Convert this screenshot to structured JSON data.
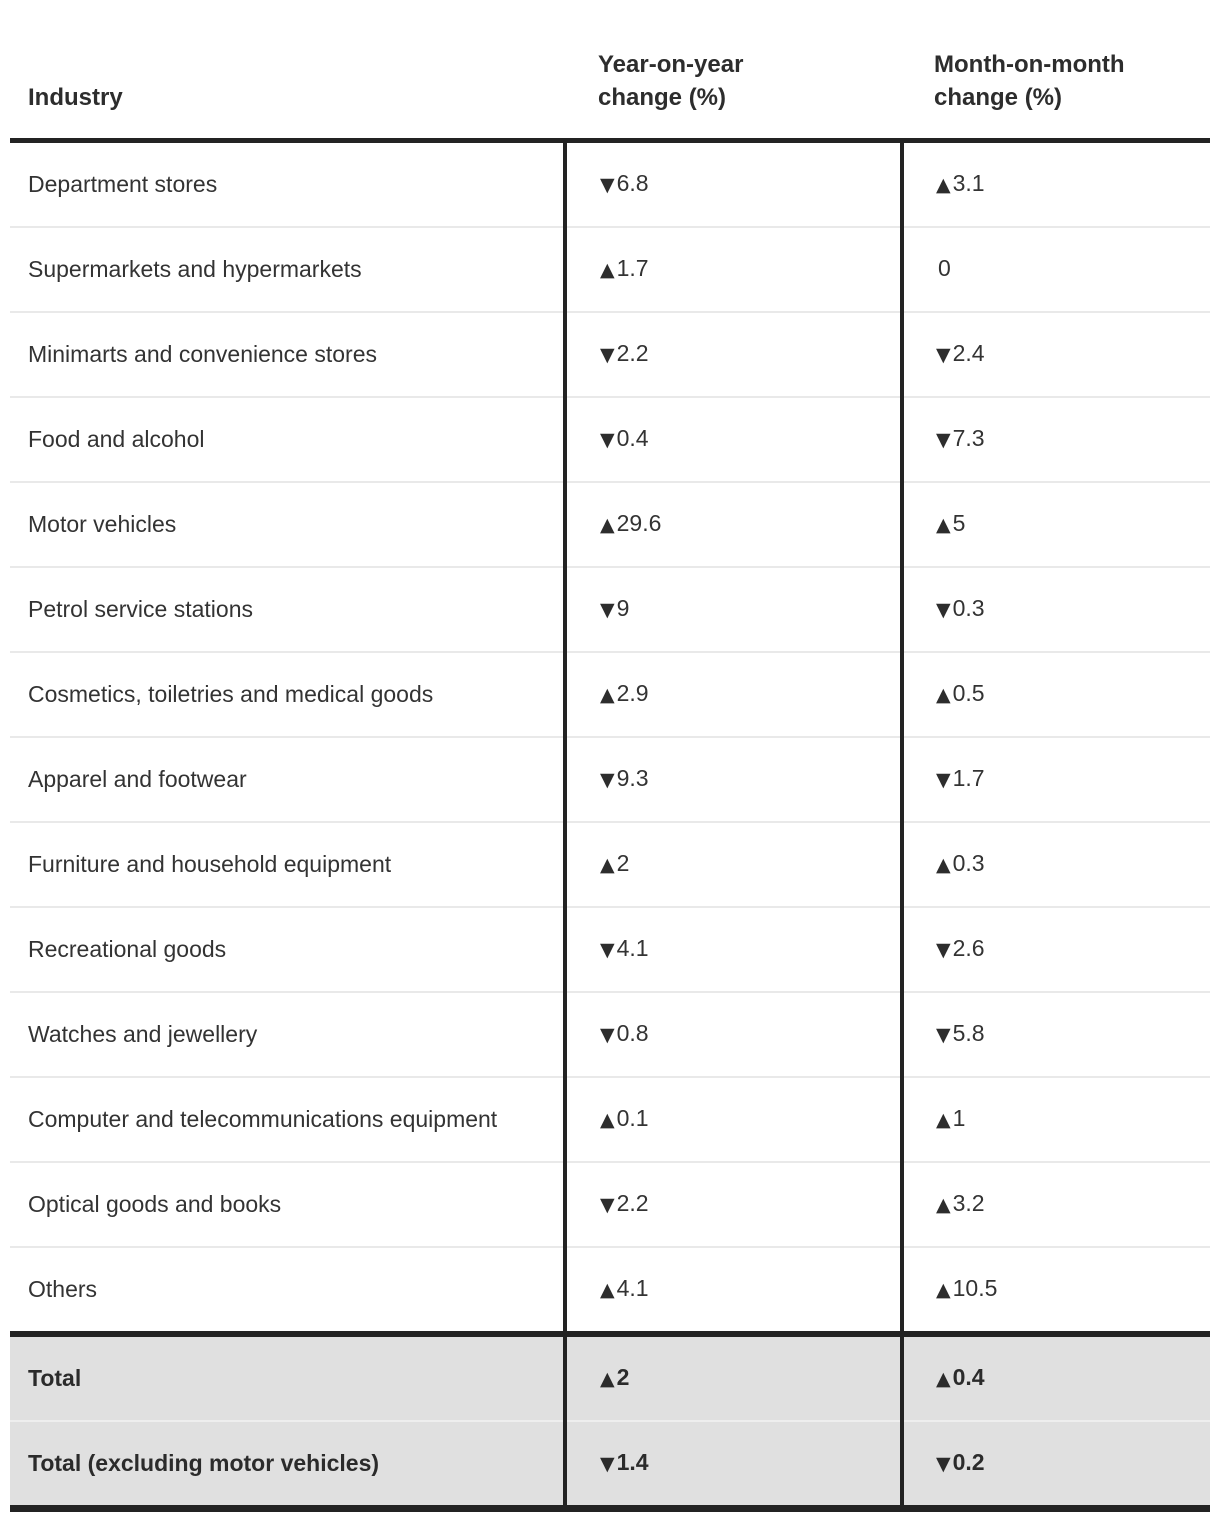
{
  "table": {
    "columns": [
      "Industry",
      "Year-on-year\nchange (%)",
      "Month-on-month\nchange (%)"
    ],
    "icons": {
      "up": "▲",
      "down": "▼",
      "none": ""
    },
    "rows": [
      {
        "label": "Department stores",
        "yoy_dir": "down",
        "yoy": "6.8",
        "mom_dir": "up",
        "mom": "3.1"
      },
      {
        "label": "Supermarkets and hypermarkets",
        "yoy_dir": "up",
        "yoy": "1.7",
        "mom_dir": "none",
        "mom": "0"
      },
      {
        "label": "Minimarts and convenience stores",
        "yoy_dir": "down",
        "yoy": "2.2",
        "mom_dir": "down",
        "mom": "2.4"
      },
      {
        "label": "Food and alcohol",
        "yoy_dir": "down",
        "yoy": "0.4",
        "mom_dir": "down",
        "mom": "7.3"
      },
      {
        "label": "Motor vehicles",
        "yoy_dir": "up",
        "yoy": "29.6",
        "mom_dir": "up",
        "mom": "5"
      },
      {
        "label": "Petrol service stations",
        "yoy_dir": "down",
        "yoy": "9",
        "mom_dir": "down",
        "mom": "0.3"
      },
      {
        "label": "Cosmetics, toiletries and medical goods",
        "yoy_dir": "up",
        "yoy": "2.9",
        "mom_dir": "up",
        "mom": "0.5"
      },
      {
        "label": "Apparel and footwear",
        "yoy_dir": "down",
        "yoy": "9.3",
        "mom_dir": "down",
        "mom": "1.7"
      },
      {
        "label": "Furniture and household equipment",
        "yoy_dir": "up",
        "yoy": "2",
        "mom_dir": "up",
        "mom": "0.3"
      },
      {
        "label": "Recreational goods",
        "yoy_dir": "down",
        "yoy": "4.1",
        "mom_dir": "down",
        "mom": "2.6"
      },
      {
        "label": "Watches and jewellery",
        "yoy_dir": "down",
        "yoy": "0.8",
        "mom_dir": "down",
        "mom": "5.8"
      },
      {
        "label": "Computer and telecommunications equipment",
        "yoy_dir": "up",
        "yoy": "0.1",
        "mom_dir": "up",
        "mom": "1"
      },
      {
        "label": "Optical goods and books",
        "yoy_dir": "down",
        "yoy": "2.2",
        "mom_dir": "up",
        "mom": "3.2"
      },
      {
        "label": "Others",
        "yoy_dir": "up",
        "yoy": "4.1",
        "mom_dir": "up",
        "mom": "10.5"
      }
    ],
    "totals": [
      {
        "label": "Total",
        "yoy_dir": "up",
        "yoy": "2",
        "mom_dir": "up",
        "mom": "0.4"
      },
      {
        "label": "Total (excluding motor vehicles)",
        "yoy_dir": "down",
        "yoy": "1.4",
        "mom_dir": "down",
        "mom": "0.2"
      }
    ]
  },
  "chart_data": {
    "type": "table",
    "title": "",
    "categories": [
      "Department stores",
      "Supermarkets and hypermarkets",
      "Minimarts and convenience stores",
      "Food and alcohol",
      "Motor vehicles",
      "Petrol service stations",
      "Cosmetics, toiletries and medical goods",
      "Apparel and footwear",
      "Furniture and household equipment",
      "Recreational goods",
      "Watches and jewellery",
      "Computer and telecommunications equipment",
      "Optical goods and books",
      "Others"
    ],
    "series": [
      {
        "name": "Year-on-year change (%)",
        "values": [
          -6.8,
          1.7,
          -2.2,
          -0.4,
          29.6,
          -9,
          2.9,
          -9.3,
          2,
          -4.1,
          -0.8,
          0.1,
          -2.2,
          4.1
        ]
      },
      {
        "name": "Month-on-month change (%)",
        "values": [
          3.1,
          0,
          -2.4,
          -7.3,
          5,
          -0.3,
          0.5,
          -1.7,
          0.3,
          -2.6,
          -5.8,
          1,
          3.2,
          10.5
        ]
      }
    ],
    "totals": [
      {
        "name": "Total",
        "yoy": 2,
        "mom": 0.4
      },
      {
        "name": "Total (excluding motor vehicles)",
        "yoy": -1.4,
        "mom": -0.2
      }
    ]
  },
  "colors": {
    "border_dark": "#232323",
    "row_separator": "#e9e9e9",
    "total_row_background": "#e0e0e0",
    "body_text": "#333333",
    "header_text": "#2d2d2d"
  }
}
